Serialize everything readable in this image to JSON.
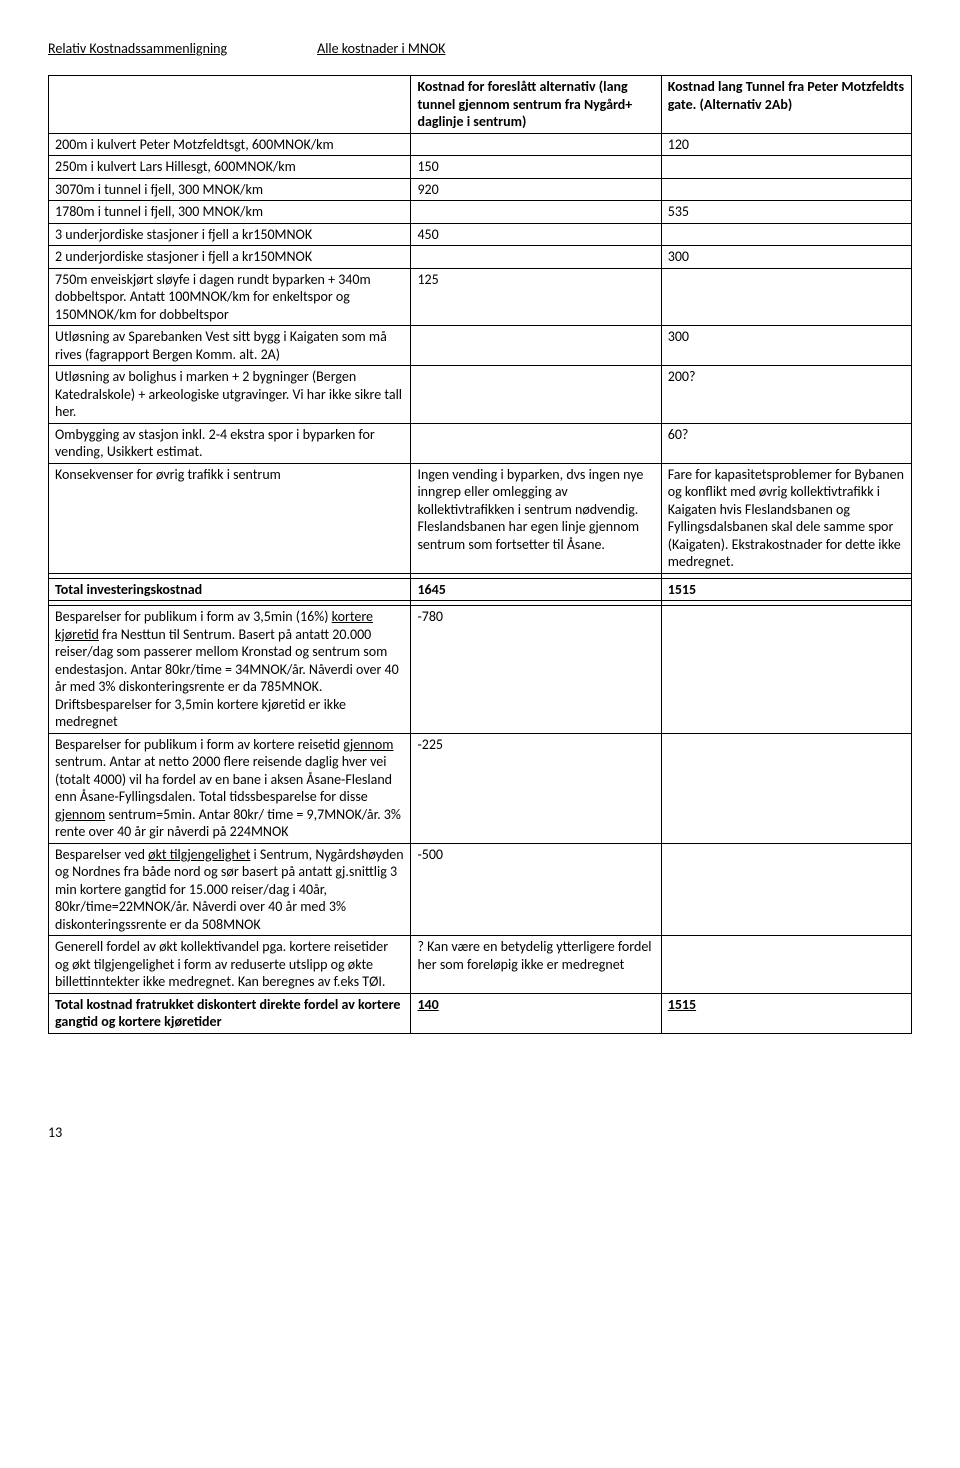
{
  "header": {
    "title_left": "Relativ Kostnadssammenligning",
    "title_right": "Alle kostnader i MNOK"
  },
  "colhead": {
    "r1c2": "Kostnad for foreslått alternativ (lang tunnel gjennom sentrum fra Nygård+ daglinje i sentrum)",
    "r1c3": "Kostnad lang Tunnel fra Peter Motzfeldts gate. (Alternativ 2Ab)"
  },
  "rows": {
    "r2c1": "200m i kulvert Peter Motzfeldtsgt, 600MNOK/km",
    "r2c3": "120",
    "r3c1": "250m i kulvert Lars Hillesgt, 600MNOK/km",
    "r3c2": "150",
    "r4c1": "3070m i tunnel i fjell, 300 MNOK/km",
    "r4c2": "920",
    "r5c1": "1780m i tunnel i fjell, 300 MNOK/km",
    "r5c3": "535",
    "r6c1": "3 underjordiske stasjoner i fjell a kr150MNOK",
    "r6c2": "450",
    "r7c1": "2 underjordiske stasjoner i fjell a kr150MNOK",
    "r7c3": "300",
    "r8c1": "750m enveiskjørt sløyfe i dagen rundt byparken + 340m dobbeltspor. Antatt 100MNOK/km for enkeltspor og 150MNOK/km for dobbeltspor",
    "r8c2": "125",
    "r9c1": "Utløsning av Sparebanken Vest sitt bygg i Kaigaten som må rives (fagrapport Bergen Komm. alt. 2A)",
    "r9c3": "300",
    "r10c1": "Utløsning av bolighus i marken + 2 bygninger (Bergen Katedralskole) + arkeologiske utgravinger. Vi har ikke sikre tall her.",
    "r10c3": "200?",
    "r11c1": "Ombygging av stasjon inkl. 2-4 ekstra spor i byparken for vending, Usikkert estimat.",
    "r11c3": "60?",
    "r12c1": "Konsekvenser for øvrig trafikk i sentrum",
    "r12c2": "Ingen vending i byparken, dvs ingen nye inngrep eller omlegging av kollektivtrafikken i sentrum nødvendig. Fleslandsbanen har egen linje gjennom sentrum som fortsetter til Åsane.",
    "r12c3": "Fare for kapasitetsproblemer for Bybanen og konflikt med øvrig kollektivtrafikk i Kaigaten hvis Fleslandsbanen og Fyllingsdalsbanen skal dele samme spor (Kaigaten). Ekstrakostnader for dette ikke medregnet.",
    "r14c1": "Total investeringskostnad",
    "r14c2": "1645",
    "r14c3": "1515",
    "r16c1a": "Besparelser for publikum i form av 3,5min (16%) ",
    "r16c1b": "kortere kjøretid",
    "r16c1c": " fra Nesttun til Sentrum. Basert på antatt 20.000 reiser/dag som passerer mellom Kronstad og sentrum som endestasjon. Antar 80kr/time = 34MNOK/år. Nåverdi over 40 år med 3% diskonteringsrente er da 785MNOK. Driftsbesparelser for 3,5min kortere kjøretid er ikke medregnet",
    "r16c2": "-780",
    "r17c1a": "Besparelser for publikum i form av kortere reisetid ",
    "r17c1b": "gjennom",
    "r17c1c": " sentrum. Antar at netto 2000 flere reisende daglig hver vei (totalt 4000) vil ha fordel av en bane i aksen Åsane-Flesland enn Åsane-Fyllingsdalen. Total tidssbesparelse for disse ",
    "r17c1d": "gjennom",
    "r17c1e": " sentrum=5min. Antar 80kr/ time = 9,7MNOK/år. 3% rente over 40 år gir nåverdi på 224MNOK",
    "r17c2": "-225",
    "r18c1a": "Besparelser ved ",
    "r18c1b": "økt tilgjengelighet",
    "r18c1c": " i Sentrum, Nygårdshøyden og Nordnes fra både nord og sør basert på antatt gj.snittlig 3 min kortere gangtid for 15.000 reiser/dag i 40år, 80kr/time=22MNOK/år. Nåverdi over 40 år med 3% diskonteringssrente er da 508MNOK",
    "r18c2": "-500",
    "r19c1": "Generell fordel av økt kollektivandel pga. kortere reisetider og økt tilgjengelighet i form av reduserte utslipp og økte billettinntekter ikke medregnet. Kan beregnes av f.eks TØI.",
    "r19c2": "? Kan være en betydelig ytterligere fordel her som foreløpig ikke er medregnet",
    "r20c1": "Total kostnad fratrukket diskontert direkte fordel av kortere gangtid og kortere kjøretider",
    "r20c2": "140",
    "r20c3": "1515"
  },
  "page_number": "13"
}
